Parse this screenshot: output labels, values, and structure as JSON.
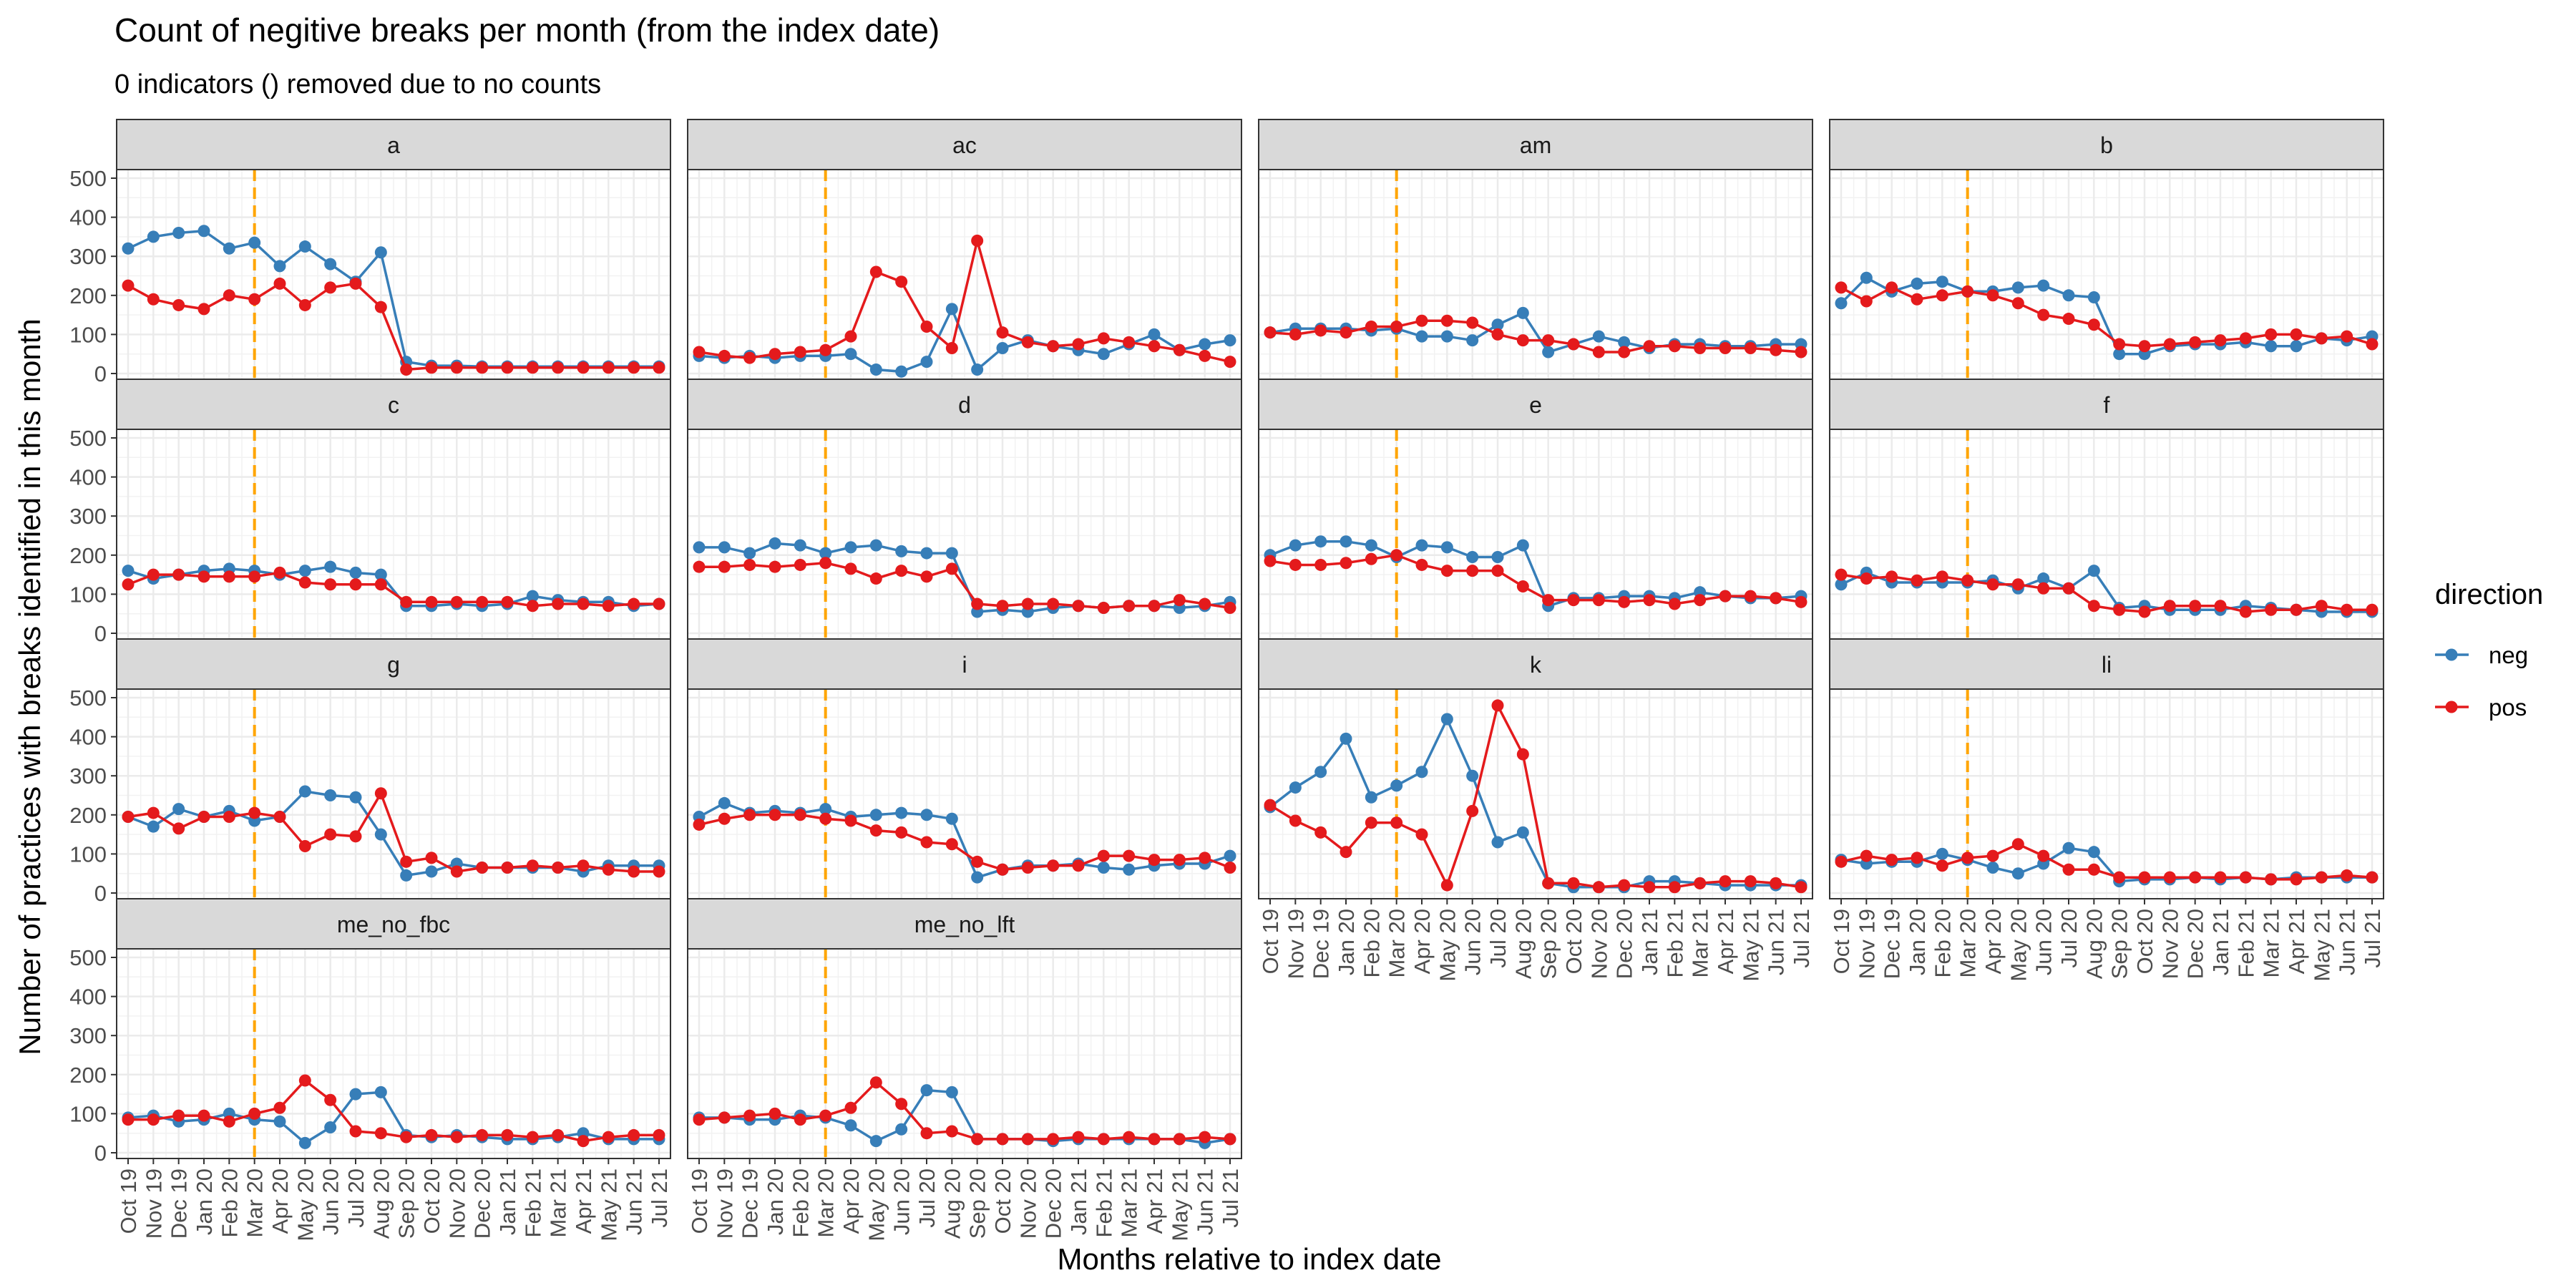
{
  "title": "Count of negitive breaks per month (from the index date)",
  "subtitle": "0 indicators () removed due to no counts",
  "xlabel": "Months relative to index date",
  "ylabel": "Number of practices with breaks identified in this month",
  "legend": {
    "title": "direction",
    "position": "right",
    "entries": [
      {
        "label": "neg",
        "color": "#377EB8"
      },
      {
        "label": "pos",
        "color": "#E41A1C"
      }
    ]
  },
  "colors": {
    "neg": "#377EB8",
    "pos": "#E41A1C",
    "index_line": "#FFA500",
    "strip_bg": "#D9D9D9",
    "grid": "#EBEBEB"
  },
  "chart_data": {
    "type": "line",
    "facet_layout": {
      "ncol": 4,
      "nrow": 4
    },
    "x": [
      "Oct 19",
      "Nov 19",
      "Dec 19",
      "Jan 20",
      "Feb 20",
      "Mar 20",
      "Apr 20",
      "May 20",
      "Jun 20",
      "Jul 20",
      "Aug 20",
      "Sep 20",
      "Oct 20",
      "Nov 20",
      "Dec 20",
      "Jan 21",
      "Feb 21",
      "Mar 21",
      "Apr 21",
      "May 21",
      "Jun 21",
      "Jul 21"
    ],
    "index_date": "Mar 20",
    "ylim": [
      0,
      500
    ],
    "yticks": [
      0,
      100,
      200,
      300,
      400,
      500
    ],
    "grid": true,
    "panels": [
      {
        "label": "a",
        "neg": [
          320,
          350,
          360,
          365,
          320,
          335,
          275,
          325,
          280,
          235,
          310,
          30,
          20,
          20,
          18,
          18,
          18,
          18,
          18,
          18,
          18,
          18
        ],
        "pos": [
          225,
          190,
          175,
          165,
          200,
          190,
          230,
          175,
          220,
          230,
          170,
          10,
          15,
          15,
          15,
          15,
          15,
          15,
          15,
          15,
          15,
          15
        ]
      },
      {
        "label": "ac",
        "neg": [
          45,
          40,
          45,
          40,
          45,
          45,
          50,
          10,
          5,
          30,
          165,
          10,
          65,
          85,
          70,
          60,
          50,
          75,
          100,
          60,
          75,
          85
        ],
        "pos": [
          55,
          45,
          40,
          50,
          55,
          60,
          95,
          260,
          235,
          120,
          65,
          340,
          105,
          80,
          70,
          75,
          90,
          80,
          70,
          60,
          45,
          30
        ]
      },
      {
        "label": "am",
        "neg": [
          105,
          115,
          115,
          115,
          110,
          115,
          95,
          95,
          85,
          125,
          155,
          55,
          75,
          95,
          80,
          65,
          75,
          75,
          70,
          70,
          75,
          75
        ],
        "pos": [
          105,
          100,
          110,
          105,
          120,
          120,
          135,
          135,
          130,
          100,
          85,
          85,
          75,
          55,
          55,
          70,
          70,
          65,
          65,
          65,
          60,
          55
        ]
      },
      {
        "label": "b",
        "neg": [
          180,
          245,
          210,
          230,
          235,
          210,
          210,
          220,
          225,
          200,
          195,
          50,
          50,
          70,
          75,
          75,
          80,
          70,
          70,
          90,
          85,
          95
        ],
        "pos": [
          220,
          185,
          220,
          190,
          200,
          210,
          200,
          180,
          150,
          140,
          125,
          75,
          70,
          75,
          80,
          85,
          90,
          100,
          100,
          90,
          95,
          75
        ]
      },
      {
        "label": "c",
        "neg": [
          160,
          140,
          150,
          160,
          165,
          160,
          150,
          160,
          170,
          155,
          150,
          70,
          70,
          75,
          70,
          75,
          95,
          85,
          80,
          80,
          70,
          75
        ],
        "pos": [
          125,
          150,
          150,
          145,
          145,
          145,
          155,
          130,
          125,
          125,
          125,
          80,
          80,
          80,
          80,
          80,
          70,
          75,
          75,
          70,
          75,
          75
        ]
      },
      {
        "label": "d",
        "neg": [
          220,
          220,
          205,
          230,
          225,
          205,
          220,
          225,
          210,
          205,
          205,
          55,
          60,
          55,
          65,
          70,
          65,
          70,
          70,
          65,
          70,
          80
        ],
        "pos": [
          170,
          170,
          175,
          170,
          175,
          180,
          165,
          140,
          160,
          145,
          165,
          75,
          70,
          75,
          75,
          70,
          65,
          70,
          70,
          85,
          75,
          65
        ]
      },
      {
        "label": "e",
        "neg": [
          200,
          225,
          235,
          235,
          225,
          195,
          225,
          220,
          195,
          195,
          225,
          70,
          90,
          90,
          95,
          95,
          90,
          105,
          95,
          90,
          90,
          95
        ],
        "pos": [
          185,
          175,
          175,
          180,
          190,
          200,
          175,
          160,
          160,
          160,
          120,
          85,
          85,
          85,
          80,
          85,
          75,
          85,
          95,
          95,
          90,
          80
        ]
      },
      {
        "label": "f",
        "neg": [
          125,
          155,
          130,
          130,
          130,
          130,
          135,
          115,
          140,
          115,
          160,
          65,
          70,
          60,
          60,
          60,
          70,
          65,
          60,
          55,
          55,
          55
        ],
        "pos": [
          150,
          140,
          145,
          135,
          145,
          135,
          125,
          125,
          115,
          115,
          70,
          60,
          55,
          70,
          70,
          70,
          55,
          60,
          60,
          70,
          60,
          60
        ]
      },
      {
        "label": "g",
        "neg": [
          195,
          170,
          215,
          195,
          210,
          185,
          195,
          260,
          250,
          245,
          150,
          45,
          55,
          75,
          65,
          65,
          65,
          65,
          55,
          70,
          70,
          70
        ],
        "pos": [
          195,
          205,
          165,
          195,
          195,
          205,
          195,
          120,
          150,
          145,
          255,
          80,
          90,
          55,
          65,
          65,
          70,
          65,
          70,
          60,
          55,
          55
        ]
      },
      {
        "label": "i",
        "neg": [
          195,
          230,
          205,
          210,
          205,
          215,
          195,
          200,
          205,
          200,
          190,
          40,
          60,
          70,
          70,
          75,
          65,
          60,
          70,
          75,
          75,
          95
        ],
        "pos": [
          175,
          190,
          200,
          200,
          200,
          190,
          185,
          160,
          155,
          130,
          125,
          80,
          60,
          65,
          70,
          70,
          95,
          95,
          85,
          85,
          90,
          65
        ]
      },
      {
        "label": "k",
        "neg": [
          220,
          270,
          310,
          395,
          245,
          275,
          310,
          445,
          300,
          130,
          155,
          25,
          15,
          15,
          15,
          30,
          30,
          25,
          20,
          20,
          20,
          20
        ],
        "pos": [
          225,
          185,
          155,
          105,
          180,
          180,
          150,
          20,
          210,
          480,
          355,
          25,
          25,
          15,
          20,
          15,
          15,
          25,
          30,
          30,
          25,
          15
        ]
      },
      {
        "label": "li",
        "neg": [
          85,
          75,
          80,
          80,
          100,
          85,
          65,
          50,
          75,
          115,
          105,
          30,
          35,
          35,
          40,
          35,
          40,
          35,
          40,
          40,
          40,
          40
        ],
        "pos": [
          80,
          95,
          85,
          90,
          70,
          90,
          95,
          125,
          95,
          60,
          60,
          40,
          40,
          40,
          40,
          40,
          40,
          35,
          35,
          40,
          45,
          40
        ]
      },
      {
        "label": "me_no_fbc",
        "neg": [
          90,
          95,
          80,
          85,
          100,
          85,
          80,
          25,
          65,
          150,
          155,
          45,
          40,
          45,
          40,
          35,
          35,
          40,
          50,
          35,
          35,
          35
        ],
        "pos": [
          85,
          85,
          95,
          95,
          80,
          100,
          115,
          185,
          135,
          55,
          50,
          40,
          45,
          40,
          45,
          45,
          40,
          45,
          30,
          40,
          45,
          45
        ]
      },
      {
        "label": "me_no_lft",
        "neg": [
          90,
          90,
          85,
          85,
          95,
          90,
          70,
          30,
          60,
          160,
          155,
          35,
          35,
          35,
          30,
          35,
          35,
          35,
          35,
          35,
          25,
          35
        ],
        "pos": [
          85,
          90,
          95,
          100,
          85,
          95,
          115,
          180,
          125,
          50,
          55,
          35,
          35,
          35,
          35,
          40,
          35,
          40,
          35,
          35,
          40,
          35
        ]
      }
    ]
  }
}
